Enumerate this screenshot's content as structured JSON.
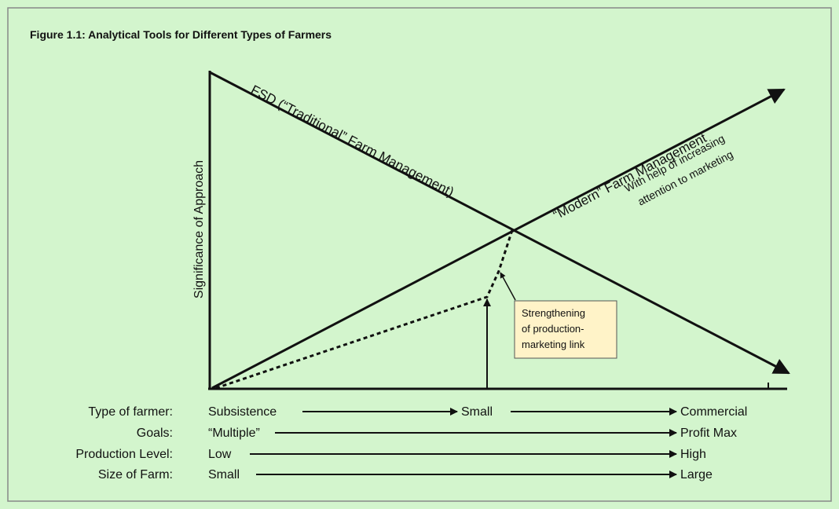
{
  "title": "Figure 1.1: Analytical Tools for Different Types of Farmers",
  "y_axis_label": "Significance of Approach",
  "curves": [
    {
      "label": "FSD (“Traditional” Farm Management)"
    },
    {
      "label": "“Modern” Farm Management",
      "note": [
        "With help of increasing",
        "attention to marketing"
      ]
    }
  ],
  "annotation": [
    "Strengthening",
    "of production-",
    "marketing link"
  ],
  "rows": [
    {
      "label": "Type of farmer:",
      "stages": [
        "Subsistence",
        "Small",
        "Commercial"
      ]
    },
    {
      "label": "Goals:",
      "stages": [
        "“Multiple”",
        "Profit Max"
      ]
    },
    {
      "label": "Production Level:",
      "stages": [
        "Low",
        "High"
      ]
    },
    {
      "label": "Size of Farm:",
      "stages": [
        "Small",
        "Large"
      ]
    }
  ]
}
